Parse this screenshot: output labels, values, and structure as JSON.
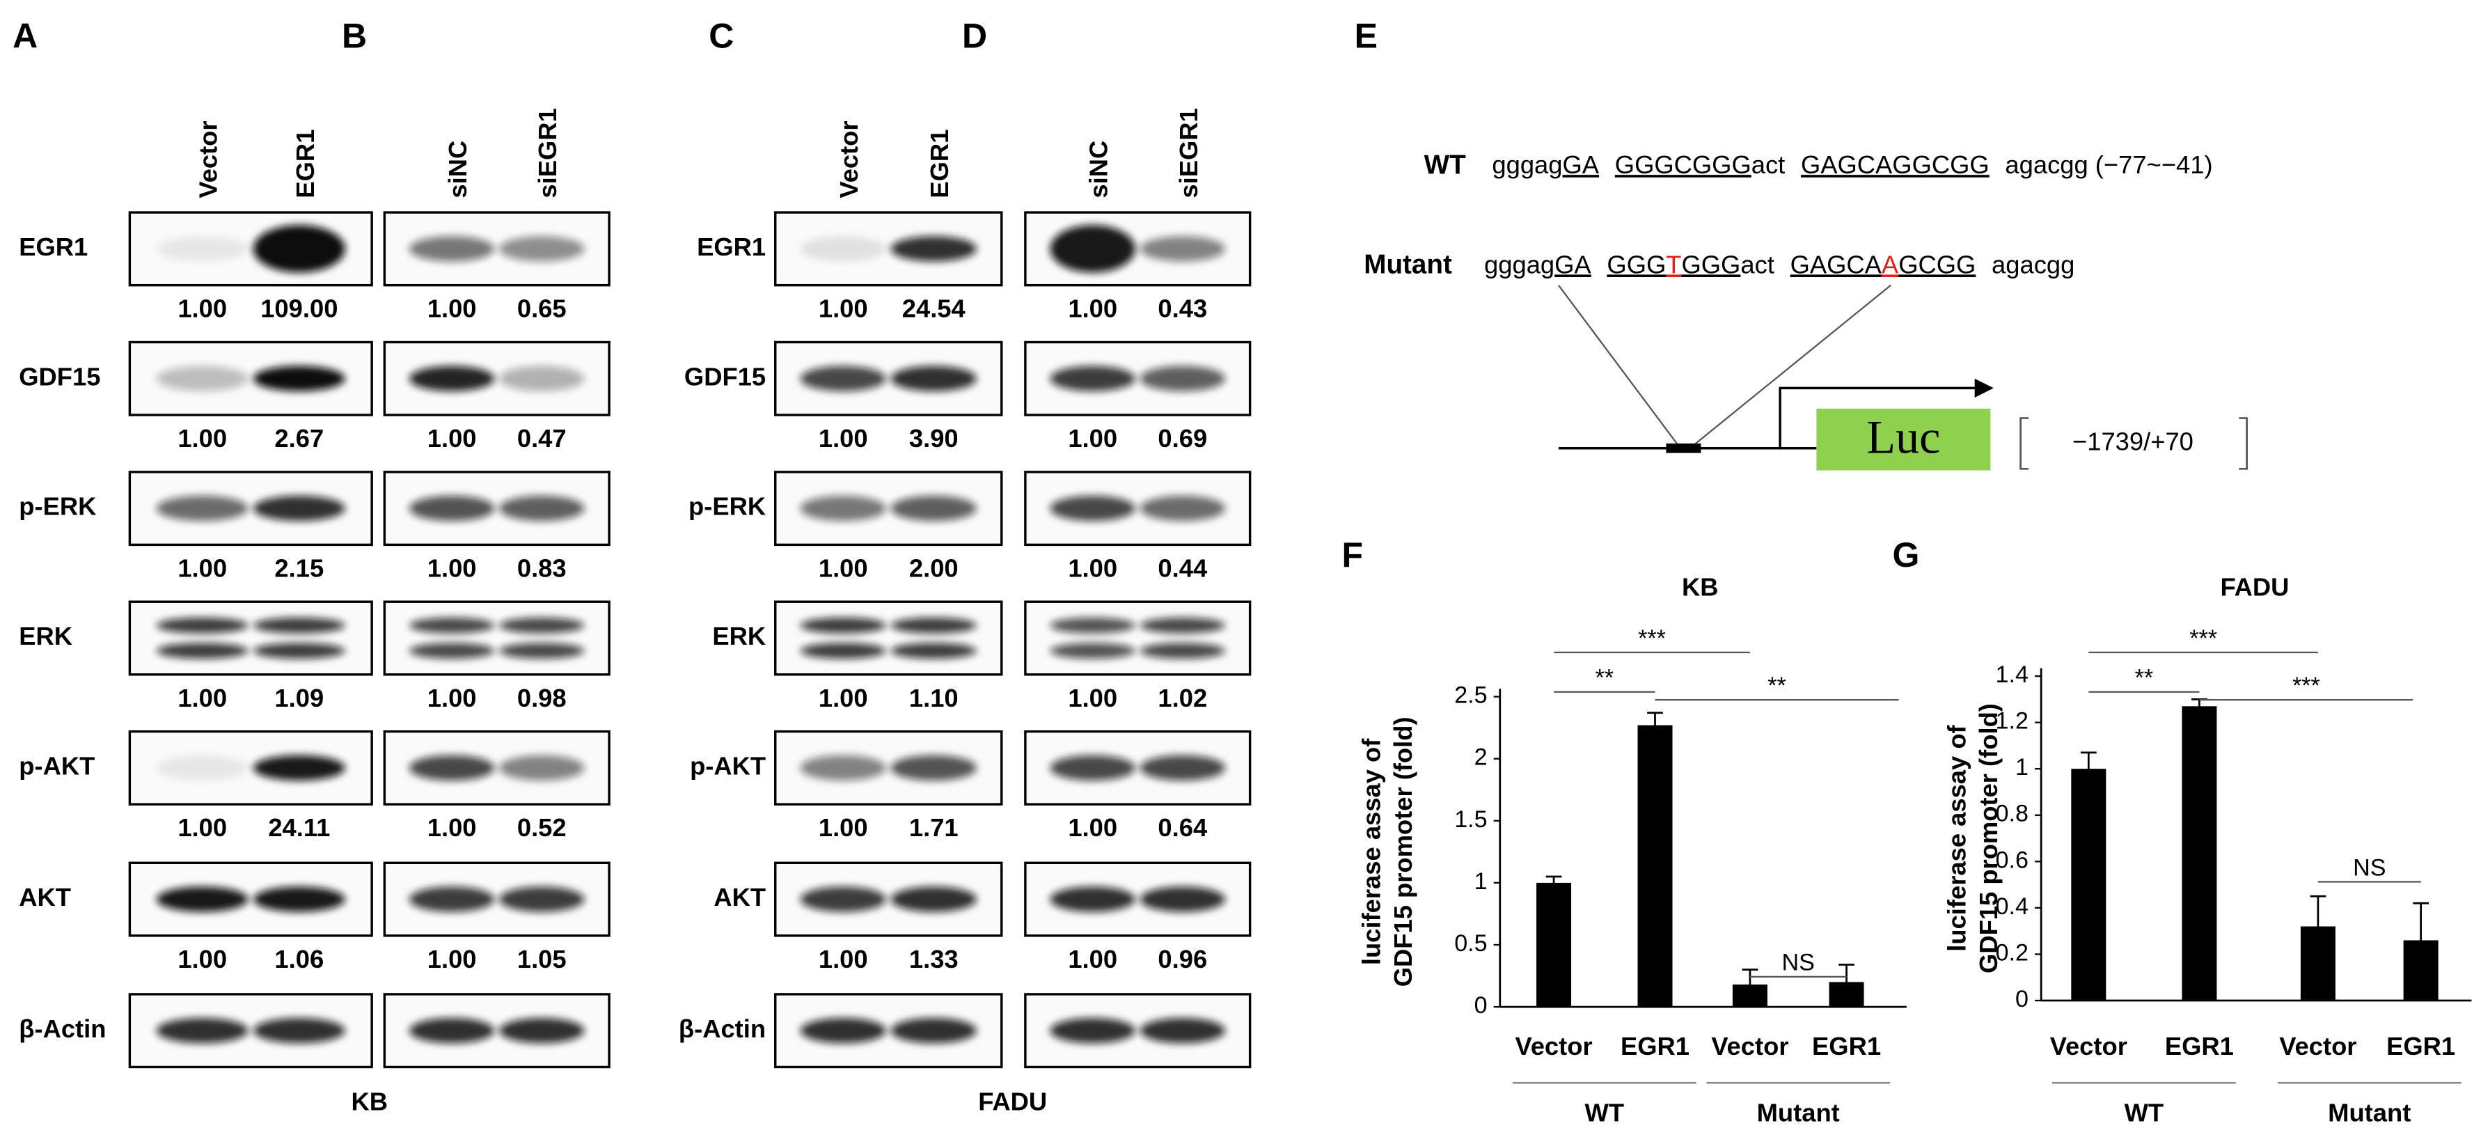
{
  "western": [
    {
      "cell_line": "KB",
      "rows": [
        "EGR1",
        "GDF15",
        "p-ERK",
        "ERK",
        "p-AKT",
        "AKT",
        "β-Actin"
      ],
      "panels": [
        {
          "label": "A",
          "lanes": [
            "Vector",
            "EGR1"
          ],
          "quant": [
            [
              "1.00",
              "109.00"
            ],
            [
              "1.00",
              "2.67"
            ],
            [
              "1.00",
              "2.15"
            ],
            [
              "1.00",
              "1.09"
            ],
            [
              "1.00",
              "24.11"
            ],
            [
              "1.00",
              "1.06"
            ]
          ]
        },
        {
          "label": "B",
          "lanes": [
            "siNC",
            "siEGR1"
          ],
          "quant": [
            [
              "1.00",
              "0.65"
            ],
            [
              "1.00",
              "0.47"
            ],
            [
              "1.00",
              "0.83"
            ],
            [
              "1.00",
              "0.98"
            ],
            [
              "1.00",
              "0.52"
            ],
            [
              "1.00",
              "1.05"
            ]
          ]
        }
      ]
    },
    {
      "cell_line": "FADU",
      "rows": [
        "EGR1",
        "GDF15",
        "p-ERK",
        "ERK",
        "p-AKT",
        "AKT",
        "β-Actin"
      ],
      "panels": [
        {
          "label": "C",
          "lanes": [
            "Vector",
            "EGR1"
          ],
          "quant": [
            [
              "1.00",
              "24.54"
            ],
            [
              "1.00",
              "3.90"
            ],
            [
              "1.00",
              "2.00"
            ],
            [
              "1.00",
              "1.10"
            ],
            [
              "1.00",
              "1.71"
            ],
            [
              "1.00",
              "1.33"
            ]
          ]
        },
        {
          "label": "D",
          "lanes": [
            "siNC",
            "siEGR1"
          ],
          "quant": [
            [
              "1.00",
              "0.43"
            ],
            [
              "1.00",
              "0.69"
            ],
            [
              "1.00",
              "0.44"
            ],
            [
              "1.00",
              "1.02"
            ],
            [
              "1.00",
              "0.64"
            ],
            [
              "1.00",
              "0.96"
            ]
          ]
        }
      ]
    }
  ],
  "promoter": {
    "label": "E",
    "wt": {
      "name": "WT",
      "segments": [
        {
          "text": "gggag"
        },
        {
          "text": "GA",
          "underline": true
        },
        {
          "text": "GGGCGGG",
          "underline": true
        },
        {
          "text": "act"
        },
        {
          "text": "GAGCAGGCGG",
          "underline": true
        },
        {
          "text": "agacgg (−77~−41)"
        }
      ]
    },
    "mutant": {
      "name": "Mutant",
      "segments": [
        {
          "text": "gggag"
        },
        {
          "text": "GA",
          "underline": true
        },
        {
          "text": "GGG",
          "underline": true
        },
        {
          "text": "T",
          "underline": true,
          "color": "#e02020"
        },
        {
          "text": "GGG",
          "underline": true
        },
        {
          "text": "act"
        },
        {
          "text": "GAGCA",
          "underline": true
        },
        {
          "text": "A",
          "underline": true,
          "color": "#e02020"
        },
        {
          "text": "GCGG",
          "underline": true
        },
        {
          "text": "agacgg"
        }
      ]
    },
    "reporter": "Luc",
    "range": "−1739/+70"
  },
  "chart_data": [
    {
      "type": "bar",
      "panel": "F",
      "title": "KB",
      "ylabel": [
        "luciferase assay of",
        "GDF15 promoter (fold)"
      ],
      "categories": [
        "Vector",
        "EGR1",
        "Vector",
        "EGR1"
      ],
      "groups": [
        "WT",
        "Mutant"
      ],
      "values": [
        1.0,
        2.27,
        0.18,
        0.2
      ],
      "errors": [
        0.05,
        0.1,
        0.12,
        0.14
      ],
      "color": "#000000",
      "ylim": [
        0,
        2.5
      ],
      "yticks": [
        0,
        0.5,
        1,
        1.5,
        2,
        2.5
      ],
      "grid": false,
      "annotations": [
        "***",
        "**",
        "**",
        "NS"
      ]
    },
    {
      "type": "bar",
      "panel": "G",
      "title": "FADU",
      "ylabel": [
        "luciferase assay of",
        "GDF15 promoter (fold)"
      ],
      "categories": [
        "Vector",
        "EGR1",
        "Vector",
        "EGR1"
      ],
      "groups": [
        "WT",
        "Mutant"
      ],
      "values": [
        1.0,
        1.27,
        0.32,
        0.26
      ],
      "errors": [
        0.07,
        0.03,
        0.13,
        0.16
      ],
      "color": "#000000",
      "ylim": [
        0,
        1.4
      ],
      "yticks": [
        0,
        0.2,
        0.4,
        0.6,
        0.8,
        1,
        1.2,
        1.4
      ],
      "grid": false,
      "annotations": [
        "***",
        "**",
        "***",
        "NS"
      ]
    }
  ]
}
